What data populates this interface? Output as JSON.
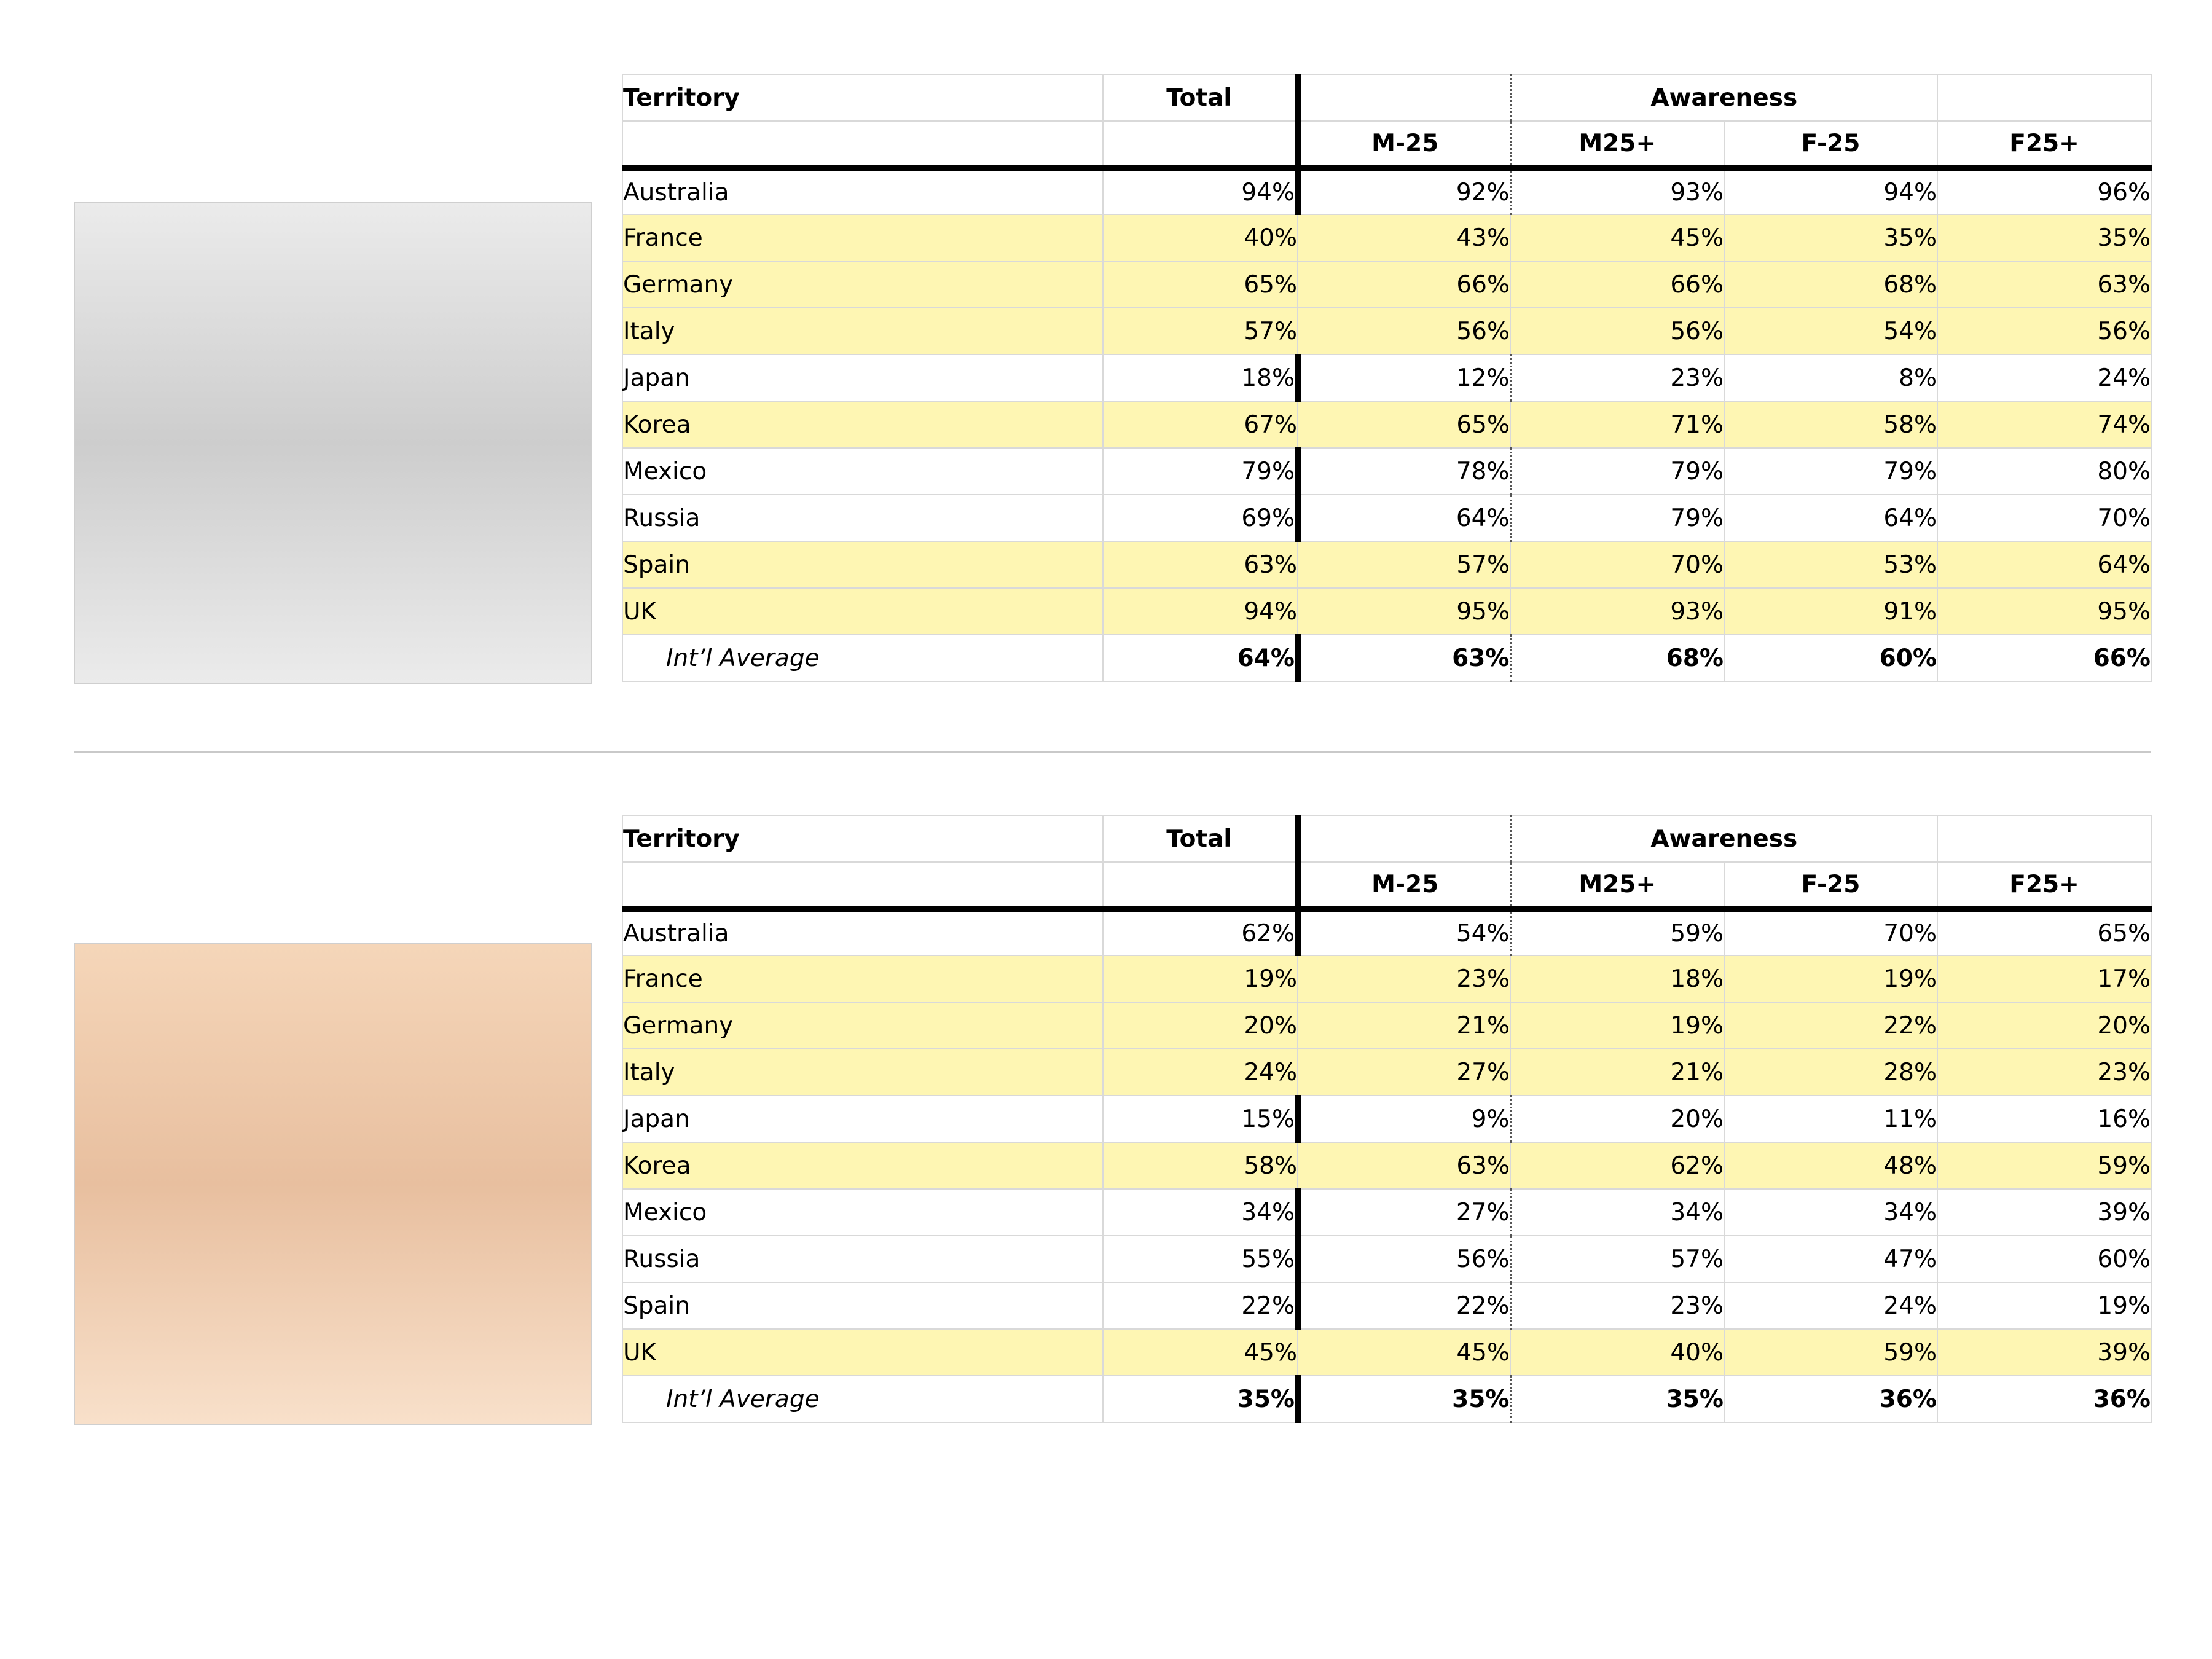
{
  "colors": {
    "highlight": "#fef6b3",
    "placeholder_gray": "#cdcdcd",
    "placeholder_peach": "#e8bf9f"
  },
  "tables": [
    {
      "headers": {
        "territory": "Territory",
        "total": "Total",
        "awareness": "Awareness"
      },
      "subheaders": [
        "M-25",
        "M25+",
        "F-25",
        "F25+"
      ],
      "rows": [
        {
          "name": "Australia",
          "total": "94%",
          "cells": [
            "92%",
            "93%",
            "94%",
            "96%"
          ],
          "highlight": false
        },
        {
          "name": "France",
          "total": "40%",
          "cells": [
            "43%",
            "45%",
            "35%",
            "35%"
          ],
          "highlight": true
        },
        {
          "name": "Germany",
          "total": "65%",
          "cells": [
            "66%",
            "66%",
            "68%",
            "63%"
          ],
          "highlight": true
        },
        {
          "name": "Italy",
          "total": "57%",
          "cells": [
            "56%",
            "56%",
            "54%",
            "56%"
          ],
          "highlight": true
        },
        {
          "name": "Japan",
          "total": "18%",
          "cells": [
            "12%",
            "23%",
            "8%",
            "24%"
          ],
          "highlight": false
        },
        {
          "name": "Korea",
          "total": "67%",
          "cells": [
            "65%",
            "71%",
            "58%",
            "74%"
          ],
          "highlight": true
        },
        {
          "name": "Mexico",
          "total": "79%",
          "cells": [
            "78%",
            "79%",
            "79%",
            "80%"
          ],
          "highlight": false
        },
        {
          "name": "Russia",
          "total": "69%",
          "cells": [
            "64%",
            "79%",
            "64%",
            "70%"
          ],
          "highlight": false
        },
        {
          "name": "Spain",
          "total": "63%",
          "cells": [
            "57%",
            "70%",
            "53%",
            "64%"
          ],
          "highlight": true
        },
        {
          "name": "UK",
          "total": "94%",
          "cells": [
            "95%",
            "93%",
            "91%",
            "95%"
          ],
          "highlight": true
        }
      ],
      "average": {
        "name": "Int’l Average",
        "total": "64%",
        "cells": [
          "63%",
          "68%",
          "60%",
          "66%"
        ]
      }
    },
    {
      "headers": {
        "territory": "Territory",
        "total": "Total",
        "awareness": "Awareness"
      },
      "subheaders": [
        "M-25",
        "M25+",
        "F-25",
        "F25+"
      ],
      "rows": [
        {
          "name": "Australia",
          "total": "62%",
          "cells": [
            "54%",
            "59%",
            "70%",
            "65%"
          ],
          "highlight": false
        },
        {
          "name": "France",
          "total": "19%",
          "cells": [
            "23%",
            "18%",
            "19%",
            "17%"
          ],
          "highlight": true
        },
        {
          "name": "Germany",
          "total": "20%",
          "cells": [
            "21%",
            "19%",
            "22%",
            "20%"
          ],
          "highlight": true
        },
        {
          "name": "Italy",
          "total": "24%",
          "cells": [
            "27%",
            "21%",
            "28%",
            "23%"
          ],
          "highlight": true
        },
        {
          "name": "Japan",
          "total": "15%",
          "cells": [
            "9%",
            "20%",
            "11%",
            "16%"
          ],
          "highlight": false
        },
        {
          "name": "Korea",
          "total": "58%",
          "cells": [
            "63%",
            "62%",
            "48%",
            "59%"
          ],
          "highlight": true
        },
        {
          "name": "Mexico",
          "total": "34%",
          "cells": [
            "27%",
            "34%",
            "34%",
            "39%"
          ],
          "highlight": false
        },
        {
          "name": "Russia",
          "total": "55%",
          "cells": [
            "56%",
            "57%",
            "47%",
            "60%"
          ],
          "highlight": false
        },
        {
          "name": "Spain",
          "total": "22%",
          "cells": [
            "22%",
            "23%",
            "24%",
            "19%"
          ],
          "highlight": false
        },
        {
          "name": "UK",
          "total": "45%",
          "cells": [
            "45%",
            "40%",
            "59%",
            "39%"
          ],
          "highlight": true
        }
      ],
      "average": {
        "name": "Int’l Average",
        "total": "35%",
        "cells": [
          "35%",
          "35%",
          "36%",
          "36%"
        ]
      }
    }
  ]
}
